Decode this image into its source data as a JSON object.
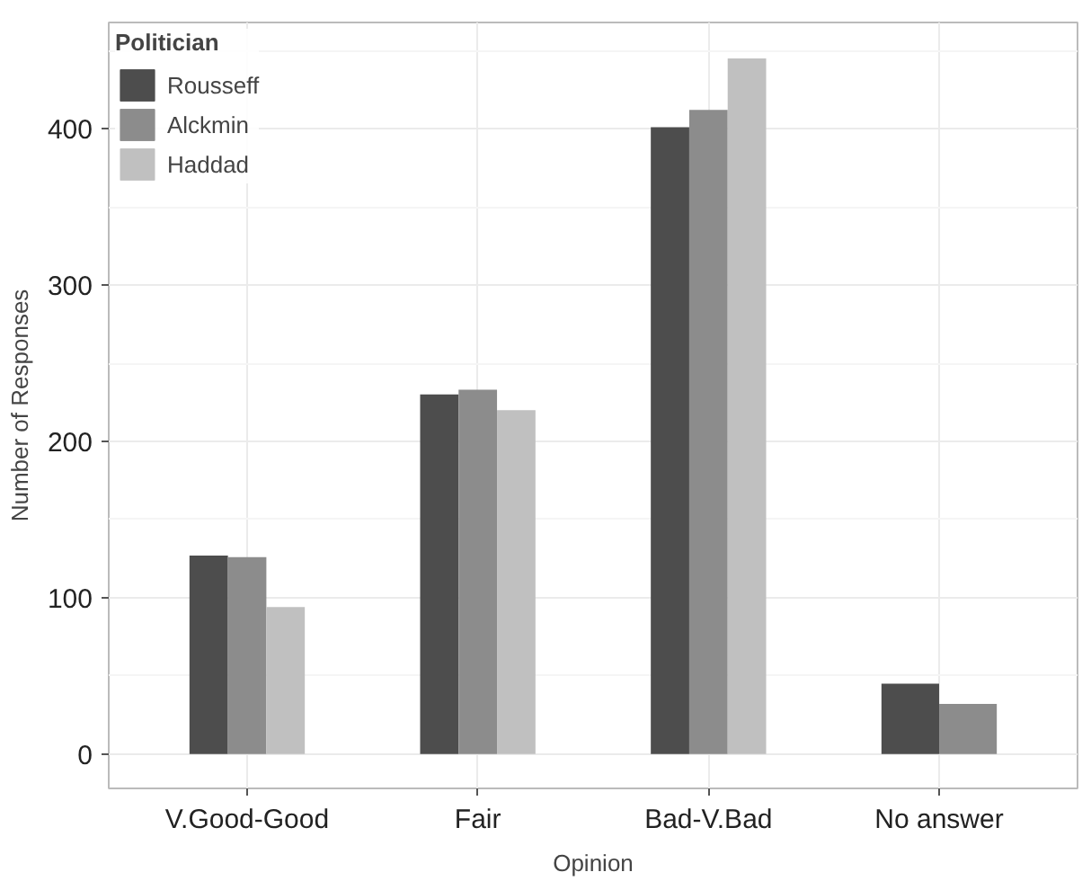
{
  "chart_data": {
    "type": "bar",
    "xlabel": "Opinion",
    "ylabel": "Number of Responses",
    "legend_title": "Politician",
    "categories": [
      "V.Good-Good",
      "Fair",
      "Bad-V.Bad",
      "No answer"
    ],
    "series": [
      {
        "name": "Rousseff",
        "color": "#4d4d4d",
        "values": [
          127,
          230,
          401,
          45
        ]
      },
      {
        "name": "Alckmin",
        "color": "#8c8c8c",
        "values": [
          126,
          233,
          412,
          32
        ]
      },
      {
        "name": "Haddad",
        "color": "#c0c0c0",
        "values": [
          94,
          220,
          445,
          null
        ]
      }
    ],
    "ylim": [
      -22,
      468
    ],
    "yticks": [
      0,
      100,
      200,
      300,
      400
    ],
    "grid": true,
    "legend": "top left"
  }
}
